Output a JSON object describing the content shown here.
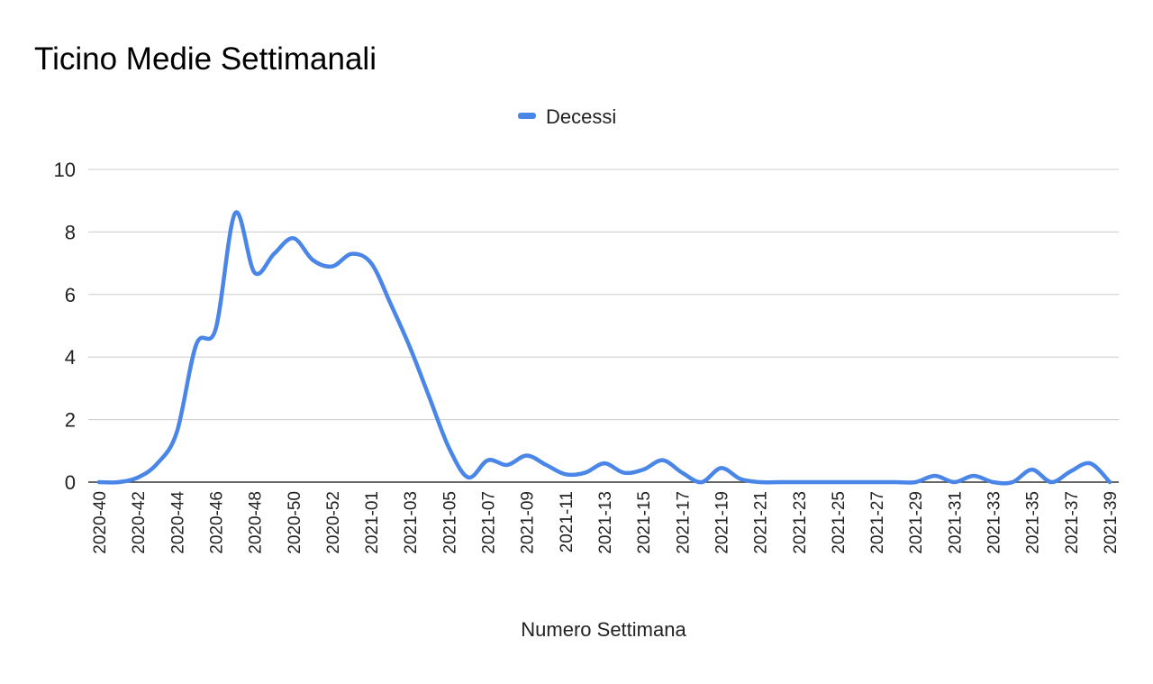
{
  "chart_data": {
    "type": "line",
    "title": "Ticino Medie Settimanali",
    "xlabel": "Numero Settimana",
    "ylabel": "",
    "ylim": [
      0,
      10
    ],
    "yticks": [
      0,
      2,
      4,
      6,
      8,
      10
    ],
    "grid": true,
    "legend_position": "top",
    "smooth": true,
    "colors": {
      "series": "#4a86e8",
      "grid": "#cccccc",
      "axis": "#333333"
    },
    "x": [
      "2020-40",
      "2020-41",
      "2020-42",
      "2020-43",
      "2020-44",
      "2020-45",
      "2020-46",
      "2020-47",
      "2020-48",
      "2020-49",
      "2020-50",
      "2020-51",
      "2020-52",
      "2020-53",
      "2021-01",
      "2021-02",
      "2021-03",
      "2021-04",
      "2021-05",
      "2021-06",
      "2021-07",
      "2021-08",
      "2021-09",
      "2021-10",
      "2021-11",
      "2021-12",
      "2021-13",
      "2021-14",
      "2021-15",
      "2021-16",
      "2021-17",
      "2021-18",
      "2021-19",
      "2021-20",
      "2021-21",
      "2021-22",
      "2021-23",
      "2021-24",
      "2021-25",
      "2021-26",
      "2021-27",
      "2021-28",
      "2021-29",
      "2021-30",
      "2021-31",
      "2021-32",
      "2021-33",
      "2021-34",
      "2021-35",
      "2021-36",
      "2021-37",
      "2021-38",
      "2021-39"
    ],
    "x_tick_labels": [
      "2020-40",
      "2020-42",
      "2020-44",
      "2020-46",
      "2020-48",
      "2020-50",
      "2020-52",
      "2021-01",
      "2021-03",
      "2021-05",
      "2021-07",
      "2021-09",
      "2021-11",
      "2021-13",
      "2021-15",
      "2021-17",
      "2021-19",
      "2021-21",
      "2021-23",
      "2021-25",
      "2021-27",
      "2021-29",
      "2021-31",
      "2021-33",
      "2021-35",
      "2021-37",
      "2021-39"
    ],
    "series": [
      {
        "name": "Decessi",
        "values": [
          0,
          0,
          0.15,
          0.6,
          1.6,
          4.4,
          4.9,
          8.6,
          6.7,
          7.3,
          7.8,
          7.1,
          6.9,
          7.3,
          7.0,
          5.7,
          4.3,
          2.7,
          1.1,
          0.15,
          0.7,
          0.55,
          0.85,
          0.55,
          0.25,
          0.3,
          0.6,
          0.3,
          0.4,
          0.7,
          0.3,
          0,
          0.45,
          0.1,
          0,
          0,
          0,
          0,
          0,
          0,
          0,
          0,
          0,
          0.2,
          0,
          0.2,
          0,
          0,
          0.4,
          0,
          0.35,
          0.6,
          0
        ]
      }
    ]
  }
}
